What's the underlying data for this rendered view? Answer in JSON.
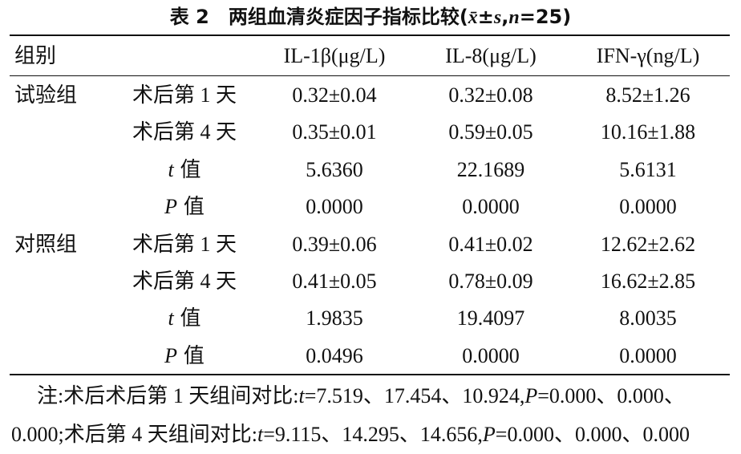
{
  "title": [
    "表 2",
    "两组血清炎症因子指标比较(",
    "x̄",
    "±",
    "s",
    ",",
    "n",
    "=25)"
  ],
  "table": {
    "header": [
      "组别",
      "IL-1β(μg/L)",
      "IL-8(μg/L)",
      "IFN-γ(ng/L)"
    ],
    "rows": [
      {
        "group": "试验组",
        "label": "术后第 1 天",
        "cells": [
          "0.32±0.04",
          "0.32±0.08",
          "8.52±1.26"
        ]
      },
      {
        "label": "术后第 4 天",
        "cells": [
          "0.35±0.01",
          "0.59±0.05",
          "10.16±1.88"
        ]
      },
      {
        "label_var": "t",
        "label": "值",
        "cells": [
          "5.6360",
          "22.1689",
          "5.6131"
        ]
      },
      {
        "label_var": "P",
        "label": "值",
        "cells": [
          "0.0000",
          "0.0000",
          "0.0000"
        ]
      },
      {
        "group": "对照组",
        "label": "术后第 1 天",
        "cells": [
          "0.39±0.06",
          "0.41±0.02",
          "12.62±2.62"
        ]
      },
      {
        "label": "术后第 4 天",
        "cells": [
          "0.41±0.05",
          "0.78±0.09",
          "16.62±2.85"
        ]
      },
      {
        "label_var": "t",
        "label": "值",
        "cells": [
          "1.9835",
          "19.4097",
          "8.0035"
        ]
      },
      {
        "label_var": "P",
        "label": "值",
        "cells": [
          "0.0496",
          "0.0000",
          "0.0000"
        ]
      }
    ]
  },
  "note": [
    [
      "注:术后术后第 1 天组间对比:",
      "t",
      "=7.519、17.454、10.924,",
      "P",
      "=0.000、0.000、"
    ],
    [
      "0.000;术后第 4 天组间对比:",
      "t",
      "=9.115、14.295、14.656,",
      "P",
      "=0.000、0.000、0.000"
    ]
  ]
}
